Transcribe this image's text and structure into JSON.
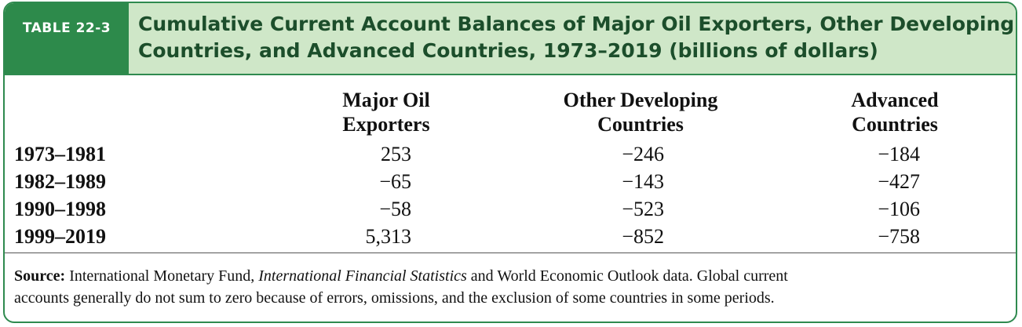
{
  "table": {
    "label": "TABLE 22-3",
    "title_line1": "Cumulative Current Account Balances of Major Oil Exporters, Other Developing",
    "title_line2": "Countries, and Advanced Countries, 1973–2019 (billions of dollars)",
    "columns": [
      {
        "line1": "Major Oil",
        "line2": "Exporters"
      },
      {
        "line1": "Other Developing",
        "line2": "Countries"
      },
      {
        "line1": "Advanced",
        "line2": "Countries"
      }
    ],
    "rows": [
      {
        "period": "1973–1981",
        "values": [
          "253",
          "−246",
          "−184"
        ]
      },
      {
        "period": "1982–1989",
        "values": [
          "−65",
          "−143",
          "−427"
        ]
      },
      {
        "period": "1990–1998",
        "values": [
          "−58",
          "−523",
          "−106"
        ]
      },
      {
        "period": "1999–2019",
        "values": [
          "5,313",
          "−852",
          "−758"
        ]
      }
    ]
  },
  "source": {
    "label": "Source:",
    "text_before_italic": " International Monetary Fund, ",
    "italic": "International Financial Statistics",
    "text_after_italic": " and World Economic Outlook data. Global current",
    "line2": "accounts generally do not sum to zero because of errors, omissions, and the exclusion of some countries in some periods."
  },
  "colors": {
    "accent": "#2d8a4b",
    "header_bg": "#cfe7c8",
    "title_text": "#1c4e2b"
  }
}
